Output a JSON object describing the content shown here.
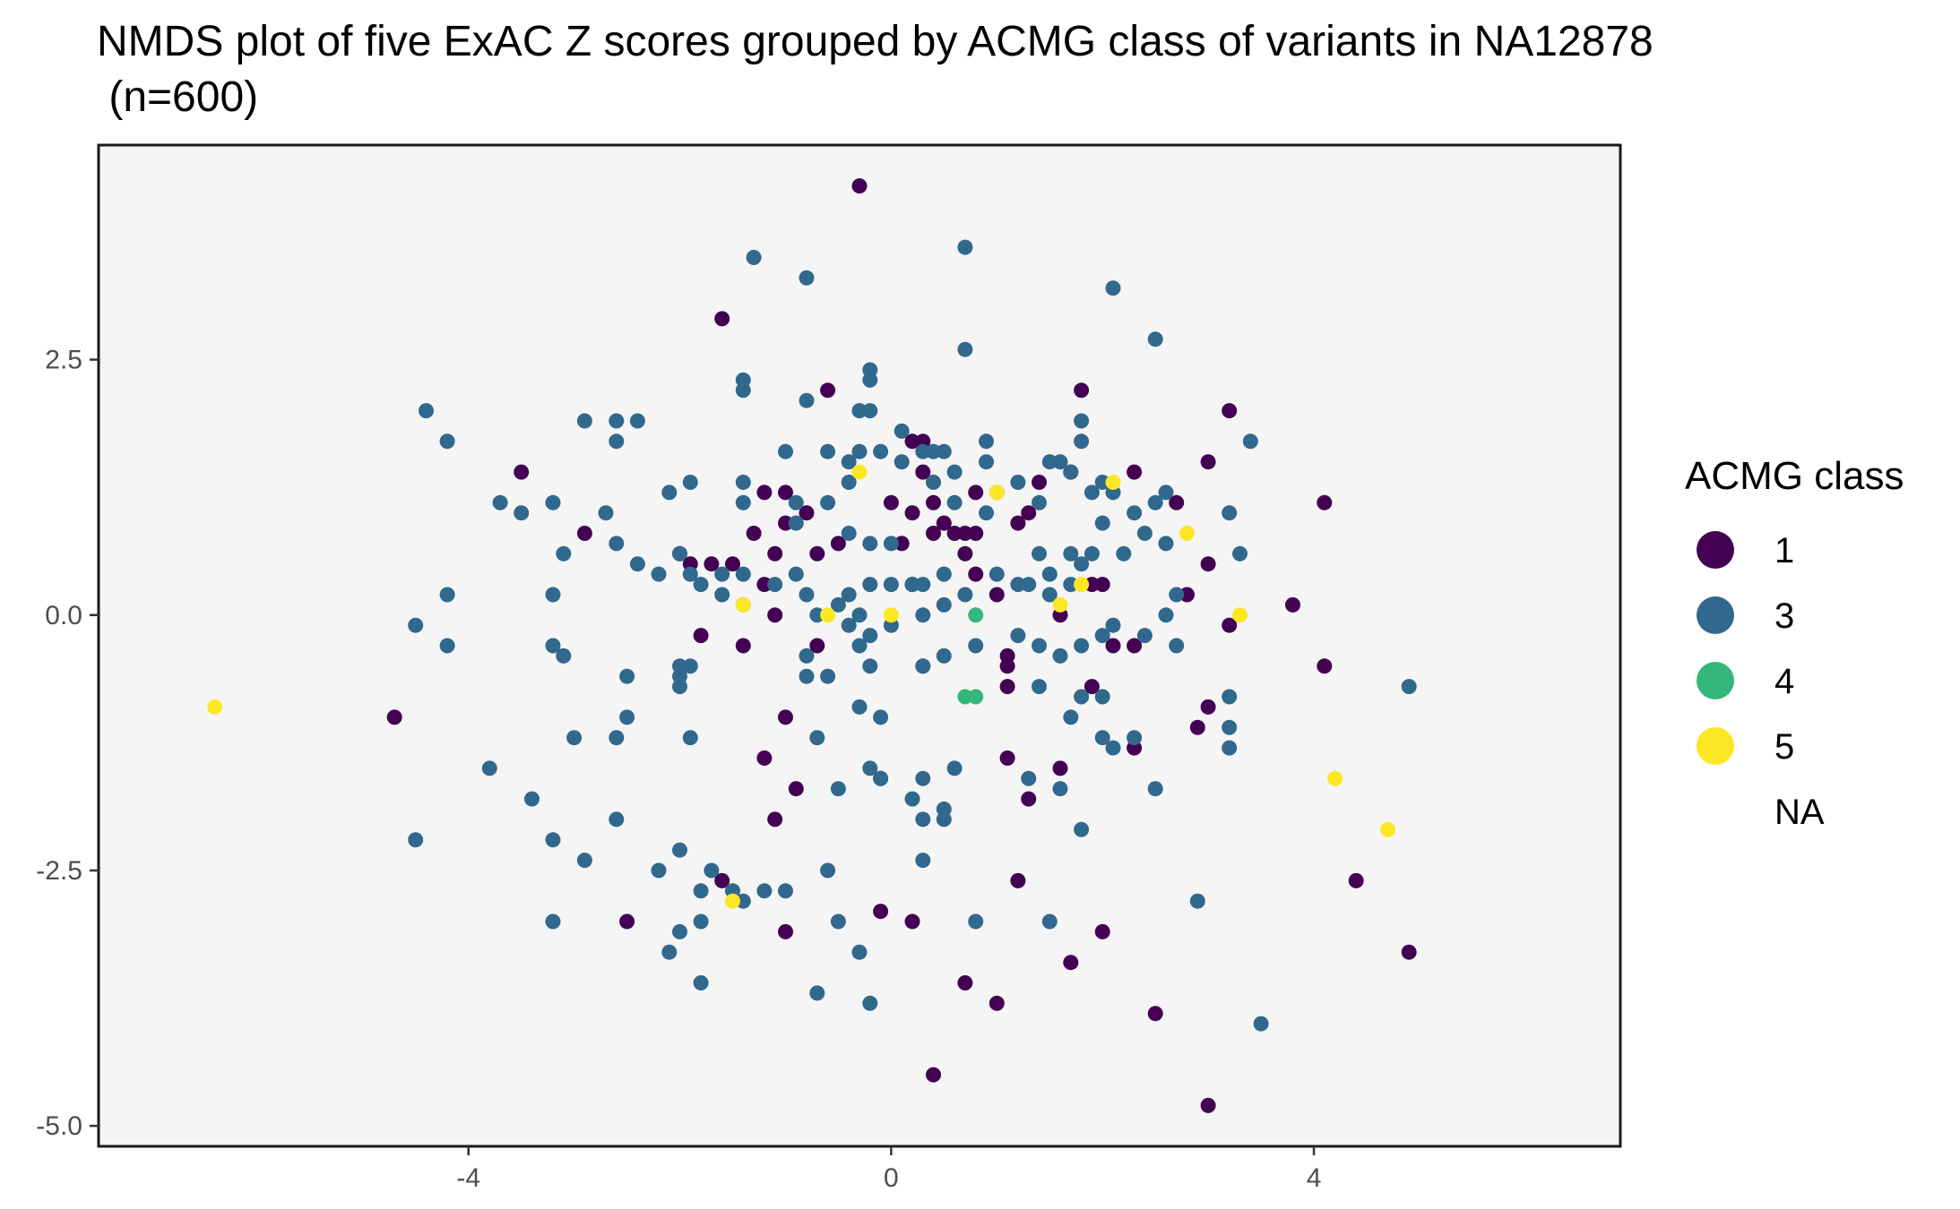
{
  "chart_data": {
    "type": "scatter",
    "title_lines": [
      "NMDS plot of five ExAC Z scores grouped by ACMG class of variants in NA12878",
      " (n=600)"
    ],
    "xlabel": "",
    "ylabel": "",
    "xlim": [
      -7.5,
      6.9
    ],
    "ylim": [
      -5.2,
      4.6
    ],
    "x_ticks": [
      {
        "value": -4,
        "label": "-4"
      },
      {
        "value": 0,
        "label": "0"
      },
      {
        "value": 4,
        "label": "4"
      }
    ],
    "y_ticks": [
      {
        "value": 2.5,
        "label": "2.5"
      },
      {
        "value": 0,
        "label": "0.0"
      },
      {
        "value": -2.5,
        "label": "-2.5"
      },
      {
        "value": -5,
        "label": "-5.0"
      }
    ],
    "grid": false,
    "panel_background": "#f5f5f5",
    "legend": {
      "title": "ACMG class",
      "placement": "right",
      "entries": [
        {
          "label": "1",
          "color": "#440154"
        },
        {
          "label": "3",
          "color": "#31688e"
        },
        {
          "label": "4",
          "color": "#35b779"
        },
        {
          "label": "5",
          "color": "#fde725"
        },
        {
          "label": "NA",
          "color": ""
        }
      ]
    },
    "series": [
      {
        "name": "1",
        "color": "#440154",
        "points": [
          [
            -0.3,
            4.2
          ],
          [
            -1.6,
            2.9
          ],
          [
            -0.6,
            2.2
          ],
          [
            1.8,
            2.2
          ],
          [
            3.2,
            2.0
          ],
          [
            -3.5,
            1.4
          ],
          [
            -0.8,
            1.0
          ],
          [
            -2.9,
            0.8
          ],
          [
            -1.0,
            0.9
          ],
          [
            -1.1,
            0.6
          ],
          [
            -0.7,
            0.6
          ],
          [
            -1.5,
            0.5
          ],
          [
            -1.2,
            1.2
          ],
          [
            -1.3,
            0.8
          ],
          [
            -1.0,
            1.2
          ],
          [
            -0.5,
            0.7
          ],
          [
            0.0,
            1.1
          ],
          [
            0.2,
            1.7
          ],
          [
            0.3,
            1.7
          ],
          [
            0.3,
            1.4
          ],
          [
            0.2,
            1.0
          ],
          [
            0.1,
            0.7
          ],
          [
            0.2,
            0.3
          ],
          [
            0.4,
            1.1
          ],
          [
            0.5,
            0.9
          ],
          [
            0.6,
            0.8
          ],
          [
            0.7,
            0.6
          ],
          [
            0.8,
            0.8
          ],
          [
            1.4,
            1.3
          ],
          [
            1.2,
            0.9
          ],
          [
            1.3,
            1.0
          ],
          [
            1.0,
            0.2
          ],
          [
            1.7,
            1.4
          ],
          [
            2.3,
            1.4
          ],
          [
            2.7,
            1.1
          ],
          [
            1.9,
            0.3
          ],
          [
            2.0,
            0.3
          ],
          [
            1.6,
            0.0
          ],
          [
            0.7,
            0.8
          ],
          [
            1.1,
            -0.4
          ],
          [
            1.1,
            -0.5
          ],
          [
            1.1,
            -0.7
          ],
          [
            0.8,
            0.4
          ],
          [
            2.8,
            0.2
          ],
          [
            3.0,
            0.5
          ],
          [
            3.2,
            -0.1
          ],
          [
            3.0,
            1.5
          ],
          [
            3.8,
            0.1
          ],
          [
            4.1,
            1.1
          ],
          [
            4.1,
            -0.5
          ],
          [
            1.9,
            -0.7
          ],
          [
            2.1,
            -0.3
          ],
          [
            2.3,
            -0.3
          ],
          [
            3.0,
            -0.9
          ],
          [
            2.9,
            -1.1
          ],
          [
            -4.7,
            -1.0
          ],
          [
            -2.0,
            0.6
          ],
          [
            -1.9,
            0.5
          ],
          [
            -1.7,
            0.5
          ],
          [
            -1.4,
            -0.3
          ],
          [
            -1.1,
            0.0
          ],
          [
            -1.2,
            0.3
          ],
          [
            -1.8,
            -0.2
          ],
          [
            -0.7,
            -0.3
          ],
          [
            -1.0,
            -1.0
          ],
          [
            -1.2,
            -1.4
          ],
          [
            -0.9,
            -1.7
          ],
          [
            -1.1,
            -2.0
          ],
          [
            -0.1,
            -1.6
          ],
          [
            1.1,
            -1.4
          ],
          [
            1.3,
            -1.8
          ],
          [
            1.6,
            -1.5
          ],
          [
            2.3,
            -1.3
          ],
          [
            1.2,
            -2.6
          ],
          [
            -2.5,
            -3.0
          ],
          [
            -1.6,
            -2.6
          ],
          [
            -1.0,
            -3.1
          ],
          [
            -0.1,
            -2.9
          ],
          [
            0.2,
            -3.0
          ],
          [
            0.7,
            -3.6
          ],
          [
            1.0,
            -3.8
          ],
          [
            1.7,
            -3.4
          ],
          [
            2.0,
            -3.1
          ],
          [
            2.5,
            -3.9
          ],
          [
            0.4,
            -4.5
          ],
          [
            3.0,
            -4.8
          ],
          [
            4.4,
            -2.6
          ],
          [
            4.9,
            -3.3
          ],
          [
            0.8,
            1.2
          ],
          [
            0.4,
            0.8
          ]
        ]
      },
      {
        "name": "3",
        "color": "#31688e",
        "points": [
          [
            0.7,
            3.6
          ],
          [
            -1.3,
            3.5
          ],
          [
            -0.8,
            3.3
          ],
          [
            2.1,
            3.2
          ],
          [
            2.5,
            2.7
          ],
          [
            0.7,
            2.6
          ],
          [
            -1.4,
            2.3
          ],
          [
            -1.4,
            2.2
          ],
          [
            -0.2,
            2.4
          ],
          [
            -0.2,
            2.3
          ],
          [
            -0.3,
            2.0
          ],
          [
            -0.2,
            2.0
          ],
          [
            0.1,
            1.8
          ],
          [
            1.8,
            1.9
          ],
          [
            1.8,
            1.7
          ],
          [
            3.4,
            1.7
          ],
          [
            -4.4,
            2.0
          ],
          [
            -4.2,
            1.7
          ],
          [
            -2.9,
            1.9
          ],
          [
            -2.6,
            1.9
          ],
          [
            -2.6,
            1.7
          ],
          [
            -2.4,
            1.9
          ],
          [
            -3.7,
            1.1
          ],
          [
            -3.5,
            1.0
          ],
          [
            -3.2,
            1.1
          ],
          [
            -2.7,
            1.0
          ],
          [
            -3.1,
            0.6
          ],
          [
            -2.6,
            0.7
          ],
          [
            -2.4,
            0.5
          ],
          [
            -2.2,
            0.4
          ],
          [
            -2.1,
            1.2
          ],
          [
            -1.9,
            1.3
          ],
          [
            -1.4,
            1.3
          ],
          [
            -1.4,
            1.1
          ],
          [
            -1.0,
            1.6
          ],
          [
            -0.8,
            2.1
          ],
          [
            -0.6,
            1.6
          ],
          [
            -0.4,
            1.5
          ],
          [
            -0.3,
            1.6
          ],
          [
            -0.4,
            1.3
          ],
          [
            -0.6,
            1.1
          ],
          [
            -0.9,
            1.1
          ],
          [
            -0.9,
            0.9
          ],
          [
            -0.4,
            0.8
          ],
          [
            -0.2,
            0.7
          ],
          [
            0.1,
            1.5
          ],
          [
            -0.1,
            1.6
          ],
          [
            0.3,
            1.6
          ],
          [
            0.4,
            1.6
          ],
          [
            0.5,
            1.6
          ],
          [
            0.4,
            1.3
          ],
          [
            0.6,
            1.4
          ],
          [
            0.9,
            1.7
          ],
          [
            0.9,
            1.5
          ],
          [
            0.6,
            1.1
          ],
          [
            0.9,
            1.0
          ],
          [
            1.0,
            1.2
          ],
          [
            1.2,
            1.3
          ],
          [
            1.4,
            1.1
          ],
          [
            1.5,
            1.5
          ],
          [
            1.6,
            1.5
          ],
          [
            1.7,
            1.4
          ],
          [
            1.9,
            1.2
          ],
          [
            2.0,
            1.3
          ],
          [
            2.1,
            1.2
          ],
          [
            2.3,
            1.0
          ],
          [
            2.5,
            1.1
          ],
          [
            2.6,
            1.2
          ],
          [
            3.2,
            1.0
          ],
          [
            2.0,
            0.9
          ],
          [
            1.9,
            0.6
          ],
          [
            1.8,
            0.5
          ],
          [
            2.2,
            0.6
          ],
          [
            2.6,
            0.7
          ],
          [
            2.4,
            0.8
          ],
          [
            3.3,
            0.6
          ],
          [
            0.0,
            0.7
          ],
          [
            0.2,
            0.3
          ],
          [
            0.3,
            0.3
          ],
          [
            0.5,
            0.4
          ],
          [
            0.5,
            0.1
          ],
          [
            0.7,
            0.2
          ],
          [
            1.0,
            0.4
          ],
          [
            1.2,
            0.3
          ],
          [
            1.3,
            0.3
          ],
          [
            1.5,
            0.4
          ],
          [
            1.5,
            0.2
          ],
          [
            1.4,
            0.6
          ],
          [
            1.7,
            0.6
          ],
          [
            1.7,
            0.3
          ],
          [
            -1.9,
            0.4
          ],
          [
            -2.0,
            0.6
          ],
          [
            -1.8,
            0.3
          ],
          [
            -1.6,
            0.4
          ],
          [
            -1.6,
            0.2
          ],
          [
            -1.4,
            0.4
          ],
          [
            -1.4,
            0.1
          ],
          [
            -1.1,
            0.3
          ],
          [
            -0.9,
            0.4
          ],
          [
            -0.8,
            0.2
          ],
          [
            -0.7,
            0.0
          ],
          [
            -0.5,
            0.1
          ],
          [
            -0.4,
            0.2
          ],
          [
            -0.2,
            0.3
          ],
          [
            0.0,
            0.3
          ],
          [
            -0.3,
            0.0
          ],
          [
            -0.4,
            -0.1
          ],
          [
            -0.2,
            -0.2
          ],
          [
            0.0,
            -0.1
          ],
          [
            0.3,
            0.0
          ],
          [
            0.3,
            -0.5
          ],
          [
            0.5,
            -0.4
          ],
          [
            0.8,
            -0.3
          ],
          [
            1.2,
            -0.2
          ],
          [
            1.4,
            -0.3
          ],
          [
            1.6,
            -0.4
          ],
          [
            1.8,
            -0.3
          ],
          [
            2.0,
            -0.2
          ],
          [
            2.1,
            -0.1
          ],
          [
            2.4,
            -0.2
          ],
          [
            2.6,
            0.0
          ],
          [
            2.7,
            0.2
          ],
          [
            2.7,
            -0.3
          ],
          [
            3.2,
            -0.8
          ],
          [
            3.2,
            -1.1
          ],
          [
            3.2,
            -1.3
          ],
          [
            -4.5,
            -0.1
          ],
          [
            -4.2,
            0.2
          ],
          [
            -4.2,
            -0.3
          ],
          [
            -3.2,
            0.2
          ],
          [
            -3.2,
            -0.3
          ],
          [
            -3.1,
            -0.4
          ],
          [
            -2.5,
            -0.6
          ],
          [
            -2.5,
            -1.0
          ],
          [
            -2.0,
            -0.5
          ],
          [
            -2.0,
            -0.6
          ],
          [
            -1.9,
            -0.5
          ],
          [
            -2.0,
            -0.7
          ],
          [
            -0.6,
            -0.6
          ],
          [
            -0.8,
            -0.6
          ],
          [
            -0.8,
            -0.4
          ],
          [
            -0.3,
            -0.3
          ],
          [
            -0.2,
            -0.5
          ],
          [
            0.3,
            -0.5
          ],
          [
            1.4,
            -0.7
          ],
          [
            1.8,
            -0.8
          ],
          [
            1.7,
            -1.0
          ],
          [
            2.0,
            -0.8
          ],
          [
            2.0,
            -1.2
          ],
          [
            2.1,
            -1.3
          ],
          [
            2.3,
            -1.2
          ],
          [
            2.5,
            -1.7
          ],
          [
            -3.0,
            -1.2
          ],
          [
            -2.6,
            -1.2
          ],
          [
            -1.9,
            -1.2
          ],
          [
            -0.3,
            -0.9
          ],
          [
            -0.1,
            -1.0
          ],
          [
            -0.7,
            -1.2
          ],
          [
            -0.2,
            -1.5
          ],
          [
            -0.5,
            -1.7
          ],
          [
            -0.1,
            -1.6
          ],
          [
            0.2,
            -1.8
          ],
          [
            0.3,
            -1.6
          ],
          [
            0.3,
            -2.0
          ],
          [
            0.5,
            -1.9
          ],
          [
            0.5,
            -2.0
          ],
          [
            0.6,
            -1.5
          ],
          [
            1.3,
            -1.6
          ],
          [
            1.6,
            -1.7
          ],
          [
            1.8,
            -2.1
          ],
          [
            -3.8,
            -1.5
          ],
          [
            -3.4,
            -1.8
          ],
          [
            -3.2,
            -2.2
          ],
          [
            -2.9,
            -2.4
          ],
          [
            -2.6,
            -2.0
          ],
          [
            -2.2,
            -2.5
          ],
          [
            -2.0,
            -2.3
          ],
          [
            -1.7,
            -2.5
          ],
          [
            -1.8,
            -2.7
          ],
          [
            -1.5,
            -2.7
          ],
          [
            -1.4,
            -2.8
          ],
          [
            -1.2,
            -2.7
          ],
          [
            -1.0,
            -2.7
          ],
          [
            -0.6,
            -2.5
          ],
          [
            -0.5,
            -3.0
          ],
          [
            -0.3,
            -3.3
          ],
          [
            0.3,
            -2.4
          ],
          [
            0.8,
            -3.0
          ],
          [
            1.5,
            -3.0
          ],
          [
            -3.2,
            -3.0
          ],
          [
            -2.1,
            -3.3
          ],
          [
            -2.0,
            -3.1
          ],
          [
            -1.8,
            -3.0
          ],
          [
            -1.8,
            -3.6
          ],
          [
            -0.7,
            -3.7
          ],
          [
            -0.2,
            -3.8
          ],
          [
            2.9,
            -2.8
          ],
          [
            3.5,
            -4.0
          ],
          [
            4.9,
            -0.7
          ],
          [
            -4.5,
            -2.2
          ]
        ]
      },
      {
        "name": "4",
        "color": "#35b779",
        "points": [
          [
            0.8,
            0.0
          ],
          [
            0.8,
            -0.8
          ],
          [
            0.7,
            -0.8
          ]
        ]
      },
      {
        "name": "5",
        "color": "#fde725",
        "points": [
          [
            -6.4,
            -0.9
          ],
          [
            -0.3,
            1.4
          ],
          [
            1.0,
            1.2
          ],
          [
            2.1,
            1.3
          ],
          [
            2.8,
            0.8
          ],
          [
            1.8,
            0.3
          ],
          [
            1.6,
            0.1
          ],
          [
            3.3,
            0.0
          ],
          [
            -1.4,
            0.1
          ],
          [
            -0.6,
            0.0
          ],
          [
            0.0,
            0.0
          ],
          [
            4.2,
            -1.6
          ],
          [
            4.7,
            -2.1
          ],
          [
            -1.5,
            -2.8
          ]
        ]
      }
    ]
  }
}
